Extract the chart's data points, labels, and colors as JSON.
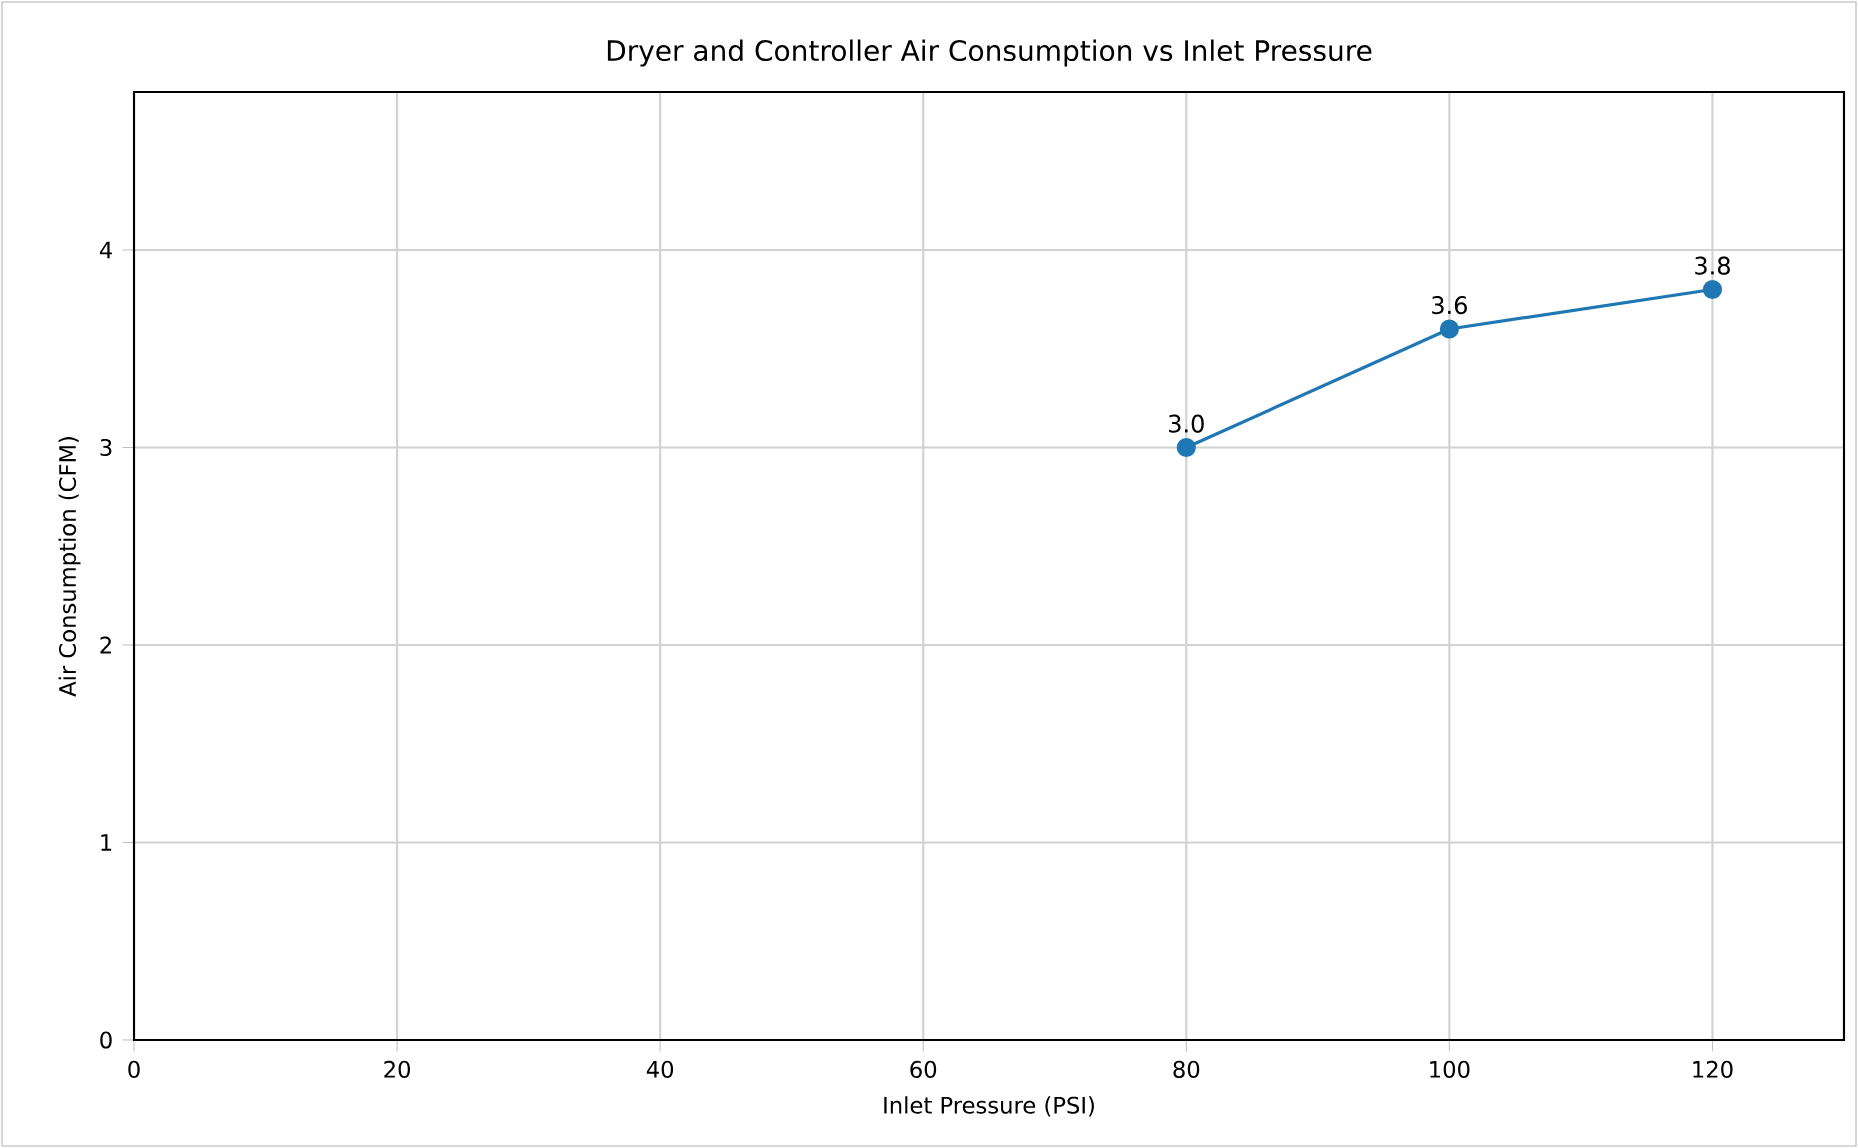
{
  "chart_data": {
    "type": "line",
    "title": "Dryer and Controller Air Consumption vs Inlet Pressure",
    "xlabel": "Inlet Pressure (PSI)",
    "ylabel": "Air Consumption (CFM)",
    "x": [
      80,
      100,
      120
    ],
    "series": [
      {
        "color": "#1f77b4",
        "values": [
          3.0,
          3.6,
          3.8
        ],
        "value_labels": [
          "3.0",
          "3.6",
          "3.8"
        ]
      }
    ],
    "xlim": [
      0,
      130
    ],
    "ylim": [
      0,
      4.8
    ],
    "xticks": [
      0,
      20,
      40,
      60,
      80,
      100,
      120
    ],
    "yticks": [
      0,
      1,
      2,
      3,
      4
    ],
    "grid": true,
    "marker": "circle",
    "line_style": "solid"
  }
}
